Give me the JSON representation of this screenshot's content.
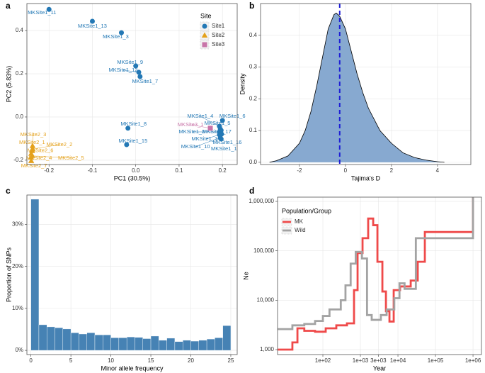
{
  "chart_data": [
    {
      "panel": "a",
      "type": "scatter",
      "xlabel": "PC1 (30.5%)",
      "ylabel": "PC2 (5.83%)",
      "legend_title": "Site",
      "legend": "top-right",
      "grid": true,
      "xlim": [
        -0.251,
        0.234
      ],
      "ylim": [
        -0.22,
        0.525
      ],
      "xticks": [
        -0.2,
        -0.1,
        {
          "value": 0,
          "label": "0.0"
        },
        0.1,
        0.2
      ],
      "yticks": [
        -0.2,
        {
          "value": 0,
          "label": "0.0"
        },
        0.2,
        0.4
      ],
      "series": [
        {
          "name": "Site1",
          "color": "#2378b5",
          "marker": "circle",
          "labels": [
            "MKSite1_11",
            "MKSite1_13",
            "MKSite1_3",
            "MKSite1_9",
            "MKSite1_12",
            "MKSite1_7",
            "MKSite1_8",
            "MKSite1_15",
            "MKSite1_4",
            "MKSite1_6",
            "MKSite1_5",
            "MKSite1_2",
            "MKSite1_17",
            "MKSite1_14",
            "MKSite1_10",
            "MKSite1_16",
            "MKSite1_1"
          ],
          "x": [
            -0.2,
            -0.1,
            -0.033,
            0.0,
            0.007,
            0.01,
            -0.018,
            -0.021,
            0.193,
            0.2,
            0.195,
            0.193,
            0.197,
            0.193,
            0.195,
            0.198,
            0.197
          ],
          "values": [
            0.498,
            0.443,
            0.39,
            0.236,
            0.207,
            0.187,
            -0.052,
            -0.128,
            -0.043,
            -0.016,
            -0.056,
            -0.069,
            -0.062,
            -0.082,
            -0.095,
            -0.079,
            -0.102
          ]
        },
        {
          "name": "Site2",
          "color": "#e4a11b",
          "marker": "triangle",
          "labels": [
            "MKSite2_3",
            "MKSite2_1",
            "MKSite2_2",
            "MKSite2_6",
            "MKSite2_4",
            "MKSite2_5",
            "MKSite2_7"
          ],
          "x": [
            -0.238,
            -0.239,
            -0.238,
            -0.241,
            -0.241,
            -0.239,
            -0.241
          ],
          "values": [
            -0.134,
            -0.157,
            -0.148,
            -0.17,
            -0.187,
            -0.18,
            -0.203
          ]
        },
        {
          "name": "Site3",
          "color": "#c874a8",
          "marker": "square",
          "labels": [
            "MKSite3_1"
          ],
          "x": [
            0.172
          ],
          "values": [
            -0.052
          ]
        }
      ]
    },
    {
      "panel": "b",
      "type": "area",
      "xlabel": "Tajima's D",
      "ylabel": "Density",
      "grid": true,
      "color": "#87a9d0",
      "line_color": "#000000",
      "vline": -0.25,
      "vline_color": "#1f1fd6",
      "vline_style": "dashed",
      "xlim": [
        -3.69,
        5.45
      ],
      "ylim": [
        -0.007,
        0.5
      ],
      "xticks": [
        -2,
        0,
        2,
        4
      ],
      "yticks": [
        {
          "value": 0,
          "label": "0.0"
        },
        0.1,
        0.2,
        0.3,
        0.4
      ],
      "x": [
        -3.3,
        -3.0,
        -2.5,
        -2.0,
        -1.75,
        -1.5,
        -1.25,
        -1.0,
        -0.75,
        -0.5,
        -0.4,
        -0.25,
        0,
        0.25,
        0.5,
        0.75,
        1.0,
        1.5,
        2.0,
        2.5,
        3.0,
        3.5,
        4.0,
        4.3
      ],
      "values": [
        0.0,
        0.005,
        0.02,
        0.06,
        0.1,
        0.16,
        0.24,
        0.33,
        0.42,
        0.465,
        0.47,
        0.46,
        0.42,
        0.35,
        0.28,
        0.22,
        0.17,
        0.1,
        0.06,
        0.03,
        0.015,
        0.007,
        0.002,
        0.0
      ]
    },
    {
      "panel": "c",
      "type": "histogram",
      "xlabel": "Minor allele frequency",
      "ylabel": "Proportion of SNPs",
      "grid": true,
      "color": "#4682b4",
      "xlim": [
        -0.5,
        25.8
      ],
      "ylim": [
        -1,
        37
      ],
      "xticks": [
        0,
        5,
        10,
        15,
        20,
        25
      ],
      "yticks": [
        {
          "value": 0,
          "label": "0%"
        },
        {
          "value": 10,
          "label": "10%"
        },
        {
          "value": 20,
          "label": "20%"
        },
        {
          "value": 30,
          "label": "30%"
        }
      ],
      "bins": [
        0,
        1,
        2,
        3,
        4,
        5,
        6,
        7,
        8,
        9,
        10,
        11,
        12,
        13,
        14,
        15,
        16,
        17,
        18,
        19,
        20,
        21,
        22,
        23,
        24,
        25
      ],
      "values": [
        36,
        6.1,
        5.6,
        5.4,
        5.1,
        4.2,
        3.9,
        4.2,
        3.7,
        3.7,
        3.0,
        3.0,
        3.2,
        3.1,
        2.8,
        3.4,
        2.4,
        2.9,
        2.1,
        2.4,
        2.2,
        2.4,
        2.7,
        3.0,
        5.9
      ]
    },
    {
      "panel": "d",
      "type": "line",
      "xlabel": "Year",
      "ylabel": "Ne",
      "log_x": true,
      "log_y": true,
      "grid": true,
      "legend_title": "Population/Group",
      "legend": "top-left",
      "xlim": [
        6.2,
        1680000
      ],
      "ylim": [
        794,
        1220000
      ],
      "xticks": [
        {
          "value": 100,
          "label": "1e+02"
        },
        {
          "value": 1000,
          "label": "1e+03"
        },
        {
          "value": 3000,
          "label": "3e+03"
        },
        {
          "value": 10000,
          "label": "1e+04"
        },
        {
          "value": 100000,
          "label": "1e+05"
        },
        {
          "value": 1000000,
          "label": "1e+06"
        }
      ],
      "yticks": [
        {
          "value": 1000,
          "label": "1,000"
        },
        {
          "value": 10000,
          "label": "10,000"
        },
        {
          "value": 100000,
          "label": "100,000"
        },
        {
          "value": 1000000,
          "label": "1,000,000"
        }
      ],
      "series": [
        {
          "name": "MK",
          "color": "#ef4a4a",
          "x": [
            6.2,
            15.4,
            15.4,
            21,
            21,
            32,
            32,
            62,
            62,
            119,
            119,
            228,
            228,
            438,
            438,
            676,
            676,
            841,
            841,
            1140,
            1140,
            1610,
            1610,
            2190,
            2190,
            2840,
            2840,
            3850,
            3850,
            4790,
            4790,
            5940,
            5940,
            7710,
            7710,
            11400,
            11400,
            21900,
            21900,
            33700,
            33700,
            52100,
            52100,
            1000000,
            1000000
          ],
          "values": [
            1000,
            1000,
            1400,
            1400,
            2700,
            2700,
            2400,
            2400,
            2300,
            2300,
            2700,
            2700,
            3100,
            3100,
            3400,
            3400,
            16000,
            16000,
            90000,
            90000,
            180000,
            180000,
            450000,
            450000,
            330000,
            330000,
            60000,
            60000,
            15000,
            15000,
            6000,
            6000,
            3700,
            3700,
            16000,
            16000,
            19000,
            19000,
            25000,
            25000,
            60000,
            60000,
            240000,
            240000,
            1200000
          ]
        },
        {
          "name": "Wild",
          "color": "#a3a3a3",
          "x": [
            6.2,
            15.4,
            15.4,
            32,
            32,
            62,
            62,
            100,
            100,
            150,
            150,
            300,
            300,
            400,
            400,
            550,
            550,
            750,
            750,
            1100,
            1100,
            1500,
            1500,
            2000,
            2000,
            3500,
            3500,
            5000,
            5000,
            8000,
            8000,
            11000,
            11000,
            15000,
            15000,
            30000,
            30000,
            1000000,
            1000000
          ],
          "values": [
            2600,
            2600,
            3100,
            3100,
            3300,
            3300,
            3800,
            3800,
            4800,
            4800,
            6500,
            6500,
            10000,
            10000,
            20000,
            20000,
            55000,
            55000,
            95000,
            95000,
            70000,
            70000,
            5000,
            5000,
            4000,
            4000,
            5000,
            5000,
            6500,
            6500,
            11000,
            11000,
            22000,
            22000,
            17000,
            17000,
            180000,
            180000,
            1200000
          ]
        }
      ]
    }
  ]
}
